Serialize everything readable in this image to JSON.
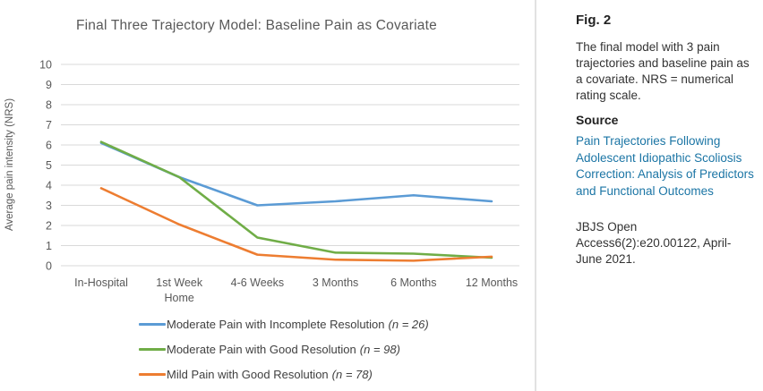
{
  "chart_data": {
    "type": "line",
    "title": "Final Three Trajectory Model: Baseline Pain as Covariate",
    "xlabel": "",
    "ylabel": "Average pain intensity (NRS)",
    "categories": [
      "In-Hospital",
      "1st Week\nHome",
      "4-6 Weeks",
      "3 Months",
      "6 Months",
      "12 Months"
    ],
    "ylim": [
      0,
      10
    ],
    "ytick_step": 1,
    "grid": true,
    "legend_position": "bottom",
    "series": [
      {
        "name": "Moderate Pain with Incomplete Resolution",
        "n_label": "(n = 26)",
        "color": "#5B9BD5",
        "values": [
          6.1,
          4.4,
          3.0,
          3.2,
          3.5,
          3.2
        ]
      },
      {
        "name": "Moderate Pain with Good Resolution",
        "n_label": "(n = 98)",
        "color": "#70AD47",
        "values": [
          6.15,
          4.4,
          1.4,
          0.65,
          0.6,
          0.4
        ]
      },
      {
        "name": "Mild Pain with Good Resolution",
        "n_label": "(n = 78)",
        "color": "#ED7D31",
        "values": [
          3.85,
          2.05,
          0.55,
          0.3,
          0.25,
          0.45
        ]
      }
    ]
  },
  "sidebar": {
    "figure_label": "Fig. 2",
    "caption": "The final model with 3 pain trajectories and baseline pain as a covariate. NRS = numerical rating scale.",
    "source_label": "Source",
    "source_link": "Pain Trajectories Following Adolescent Idiopathic Scoliosis Correction: Analysis of Predictors and Functional Outcomes",
    "citation": "JBJS Open Access6(2):e20.00122, April-June 2021."
  },
  "colors": {
    "gridline": "#D9D9D9",
    "axis_text": "#595959",
    "link": "#1B75A5",
    "divider": "#B3B3B3"
  }
}
